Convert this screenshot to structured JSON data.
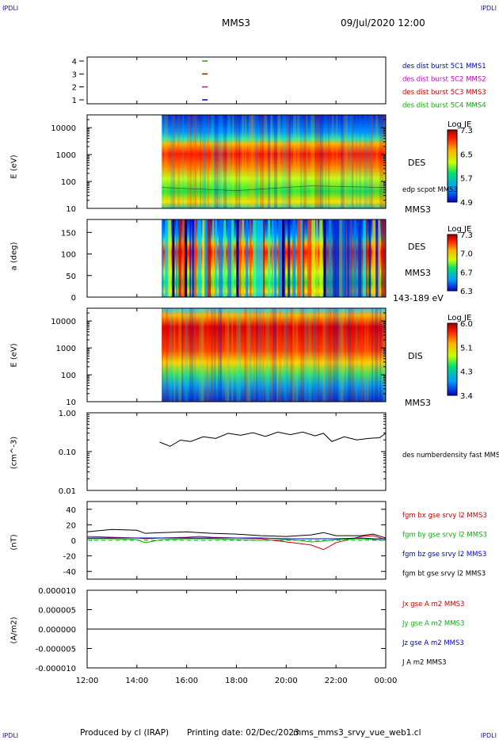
{
  "corners": {
    "top_left": "IPDLI",
    "top_right": "IPDLI",
    "bottom_left": "IPDLI",
    "bottom_right": "IPDLI"
  },
  "header": {
    "spacecraft": "MMS3",
    "datetime": "09/Jul/2020 12:00"
  },
  "footer": {
    "produced_by": "Produced by cl (IRAP)",
    "printing_date": "Printing date: 02/Dec/2023",
    "product": "mms_mms3_srvy_vue_web1.cl"
  },
  "colors": {
    "blue": "#0000c8",
    "magenta": "#c800c8",
    "red": "#c80000",
    "green": "#00b400",
    "black": "#000000"
  },
  "chart_data": [
    {
      "type": "scatter",
      "name": "availability",
      "yticks": [
        "4",
        "3",
        "2",
        "1"
      ],
      "legend": [
        "des dist burst 5C1 MMS1",
        "des dist burst 5C2 MMS2",
        "des dist burst 5C3 MMS3",
        "des dist burst 5C4 MMS4"
      ],
      "series": [
        {
          "name": "des dist burst 5C1 MMS1",
          "x": "16:43",
          "y": 1,
          "color": "#0000c8"
        },
        {
          "name": "des dist burst 5C2 MMS2",
          "x": "16:43",
          "y": 2,
          "color": "#c800c8"
        },
        {
          "name": "des dist burst 5C3 MMS3",
          "x": "16:43",
          "y": 3,
          "color": "#c80000"
        },
        {
          "name": "des dist burst 5C4 MMS4",
          "x": "16:43",
          "y": 4,
          "color": "#00b400"
        }
      ]
    },
    {
      "type": "heatmap",
      "name": "DES energy spectrogram",
      "ylabel": "E (eV)",
      "yscale": "log",
      "ylim": [
        10,
        30000
      ],
      "yticks": [
        "10000",
        "1000",
        "100",
        "10"
      ],
      "data_start": "15:00",
      "panel_label": "DES",
      "spacecraft": "MMS3",
      "overlay": "edp scpot MMS3",
      "colorbar": {
        "title": "Log JE",
        "ticks": [
          "7.3",
          "6.5",
          "5.7",
          "4.9"
        ]
      }
    },
    {
      "type": "heatmap",
      "name": "DES pitch angle",
      "ylabel": "a (deg)",
      "ylim": [
        0,
        180
      ],
      "yticks": [
        "150",
        "100",
        "50",
        "0"
      ],
      "data_start": "15:00",
      "panel_label": "DES",
      "spacecraft": "MMS3",
      "energy_range": "143-189 eV",
      "colorbar": {
        "title": "Log JE",
        "ticks": [
          "7.3",
          "7.0",
          "6.7",
          "6.3"
        ]
      }
    },
    {
      "type": "heatmap",
      "name": "DIS energy spectrogram",
      "ylabel": "E (eV)",
      "yscale": "log",
      "ylim": [
        10,
        30000
      ],
      "yticks": [
        "10000",
        "1000",
        "100",
        "10"
      ],
      "data_start": "15:00",
      "panel_label": "DIS",
      "spacecraft": "MMS3",
      "colorbar": {
        "title": "Log JE",
        "ticks": [
          "6.0",
          "5.1",
          "4.3",
          "3.4"
        ]
      }
    },
    {
      "type": "line",
      "name": "density",
      "ylabel": "(cm^-3)",
      "yscale": "log",
      "ylim": [
        0.01,
        1.0
      ],
      "yticks": [
        "1.00",
        "0.10",
        "0.01"
      ],
      "legend": [
        "des numberdensity fast MMS3"
      ],
      "x": [
        "14:55",
        "15:20",
        "15:45",
        "16:10",
        "16:40",
        "17:10",
        "17:40",
        "18:10",
        "18:40",
        "19:10",
        "19:40",
        "20:10",
        "20:40",
        "21:10",
        "21:30",
        "21:50",
        "22:20",
        "22:50",
        "23:20",
        "23:45",
        "00:00"
      ],
      "y": [
        0.16,
        0.15,
        0.18,
        0.2,
        0.22,
        0.24,
        0.27,
        0.29,
        0.28,
        0.27,
        0.29,
        0.3,
        0.29,
        0.28,
        0.27,
        0.2,
        0.22,
        0.22,
        0.2,
        0.25,
        0.27
      ]
    },
    {
      "type": "line",
      "name": "magnetic field",
      "ylabel": "(nT)",
      "ylim": [
        -50,
        50
      ],
      "yticks": [
        "40",
        "20",
        "0",
        "-20",
        "-40"
      ],
      "legend": [
        "fgm bx gse srvy l2 MMS3",
        "fgm by gse srvy l2 MMS3",
        "fgm bz gse srvy l2 MMS3",
        "fgm bt gse srvy l2 MMS3"
      ],
      "x": [
        "12:00",
        "13:00",
        "14:00",
        "14:20",
        "15:00",
        "16:00",
        "16:30",
        "17:00",
        "18:00",
        "19:00",
        "20:00",
        "20:30",
        "21:00",
        "21:30",
        "22:00",
        "23:00",
        "23:30",
        "00:00"
      ],
      "series": [
        {
          "name": "fgm bx gse srvy l2 MMS3",
          "color": "#c80000",
          "values": [
            5,
            4,
            3,
            2,
            3,
            4,
            5,
            4,
            3,
            2,
            -2,
            -4,
            -6,
            -12,
            -3,
            5,
            6,
            1
          ]
        },
        {
          "name": "fgm by gse srvy l2 MMS3",
          "color": "#00b400",
          "values": [
            2,
            2,
            1,
            -3,
            1,
            2,
            2,
            2,
            1,
            0,
            1,
            0,
            -2,
            -1,
            1,
            2,
            1,
            0
          ]
        },
        {
          "name": "fgm bz gse srvy l2 MMS3",
          "color": "#0000c8",
          "values": [
            3,
            3,
            3,
            3,
            3,
            3,
            3,
            3,
            3,
            3,
            2,
            2,
            2,
            2,
            2,
            3,
            2,
            2
          ]
        },
        {
          "name": "fgm bt gse srvy l2 MMS3",
          "color": "#000000",
          "values": [
            11,
            14,
            13,
            9,
            10,
            11,
            10,
            9,
            8,
            6,
            5,
            6,
            7,
            10,
            6,
            6,
            8,
            3
          ]
        }
      ]
    },
    {
      "type": "line",
      "name": "current density",
      "ylabel": "(A/m2)",
      "ylim": [
        -1e-05,
        1e-05
      ],
      "yticks": [
        "0.000010",
        "0.000005",
        "0.000000",
        "-0.000005",
        "-0.000010"
      ],
      "legend": [
        "Jx gse A m2 MMS3",
        "Jy gse A m2 MMS3",
        "Jz gse A m2 MMS3",
        "J A m2 MMS3"
      ],
      "x": [
        "12:00",
        "00:00"
      ],
      "series": [
        {
          "name": "J A m2 MMS3",
          "color": "#000000",
          "values": [
            0,
            0
          ]
        }
      ]
    }
  ],
  "xaxis": {
    "ticks": [
      "12:00",
      "14:00",
      "16:00",
      "18:00",
      "20:00",
      "22:00",
      "00:00"
    ]
  }
}
